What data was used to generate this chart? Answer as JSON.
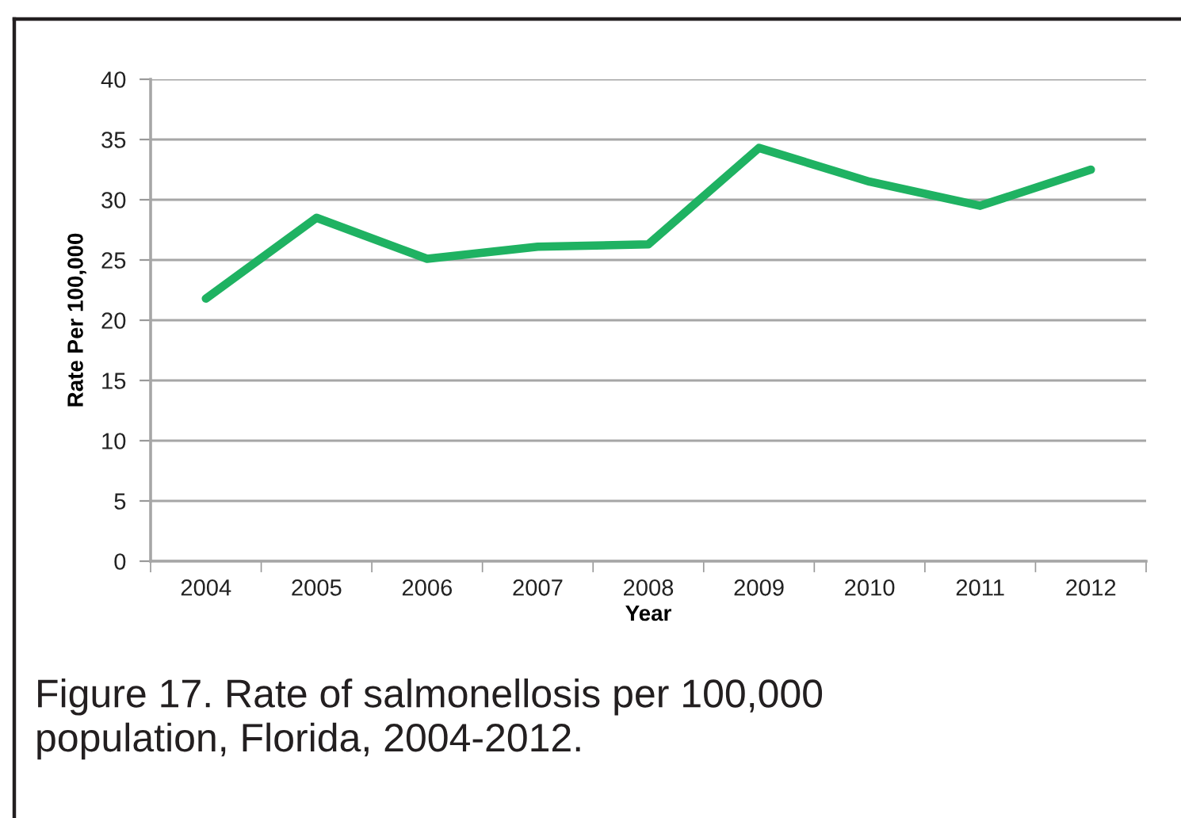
{
  "chart_data": {
    "type": "line",
    "xlabel": "Year",
    "ylabel": "Rate Per 100,000",
    "categories": [
      "2004",
      "2005",
      "2006",
      "2007",
      "2008",
      "2009",
      "2010",
      "2011",
      "2012"
    ],
    "series": [
      {
        "color": "#1fb262",
        "values": [
          21.8,
          28.5,
          25.1,
          26.1,
          26.3,
          34.3,
          31.5,
          29.5,
          32.5
        ]
      }
    ],
    "ylim": [
      0,
      40
    ],
    "yticks": [
      0,
      5,
      10,
      15,
      20,
      25,
      30,
      35,
      40
    ],
    "grid": "y",
    "line_style": "solid",
    "annotations": [
      "Figure 17. Rate of salmonellosis per 100,000 population, Florida, 2004-2012."
    ]
  }
}
